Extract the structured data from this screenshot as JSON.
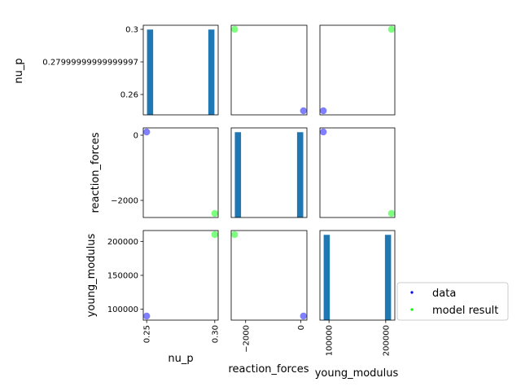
{
  "chart_data": {
    "type": "scatter",
    "kind": "scatter-matrix",
    "variables": [
      "nu_p",
      "reaction_forces",
      "young_modulus"
    ],
    "series": [
      {
        "name": "data",
        "color": "#0000ff",
        "points": [
          {
            "nu_p": 0.25,
            "reaction_forces": 100,
            "young_modulus": 90000
          }
        ]
      },
      {
        "name": "model result",
        "color": "#00ff00",
        "points": [
          {
            "nu_p": 0.3,
            "reaction_forces": -2400,
            "young_modulus": 210000
          }
        ]
      }
    ],
    "histograms": [
      {
        "variable": "nu_p",
        "bars": [
          {
            "center": 0.2525,
            "count": 1
          },
          {
            "center": 0.2975,
            "count": 1
          }
        ]
      },
      {
        "variable": "reaction_forces",
        "bars": [
          {
            "center": -2280,
            "count": 1
          },
          {
            "center": -20,
            "count": 1
          }
        ]
      },
      {
        "variable": "young_modulus",
        "bars": [
          {
            "center": 96000,
            "count": 1
          },
          {
            "center": 204000,
            "count": 1
          }
        ]
      }
    ],
    "histogram_color": "#1f77b4",
    "axis_ranges": {
      "nu_p": [
        0.2475,
        0.3025
      ],
      "reaction_forces": [
        -2525,
        225
      ],
      "young_modulus": [
        84000,
        216000
      ]
    },
    "tick_labels": {
      "nu_p_y": [
        "0.3",
        "0.27999999999999997",
        "0.26"
      ],
      "reaction_forces_y": [
        "0",
        "−2000"
      ],
      "young_modulus_y": [
        "200000",
        "150000",
        "100000"
      ],
      "nu_p_x": [
        "0.25",
        "0.30"
      ],
      "reaction_forces_x": [
        "−2000",
        "0"
      ],
      "young_modulus_x": [
        "100000",
        "200000"
      ]
    },
    "legend": {
      "position": "lower-right",
      "entries": [
        "data",
        "model result"
      ]
    },
    "grid": false
  }
}
